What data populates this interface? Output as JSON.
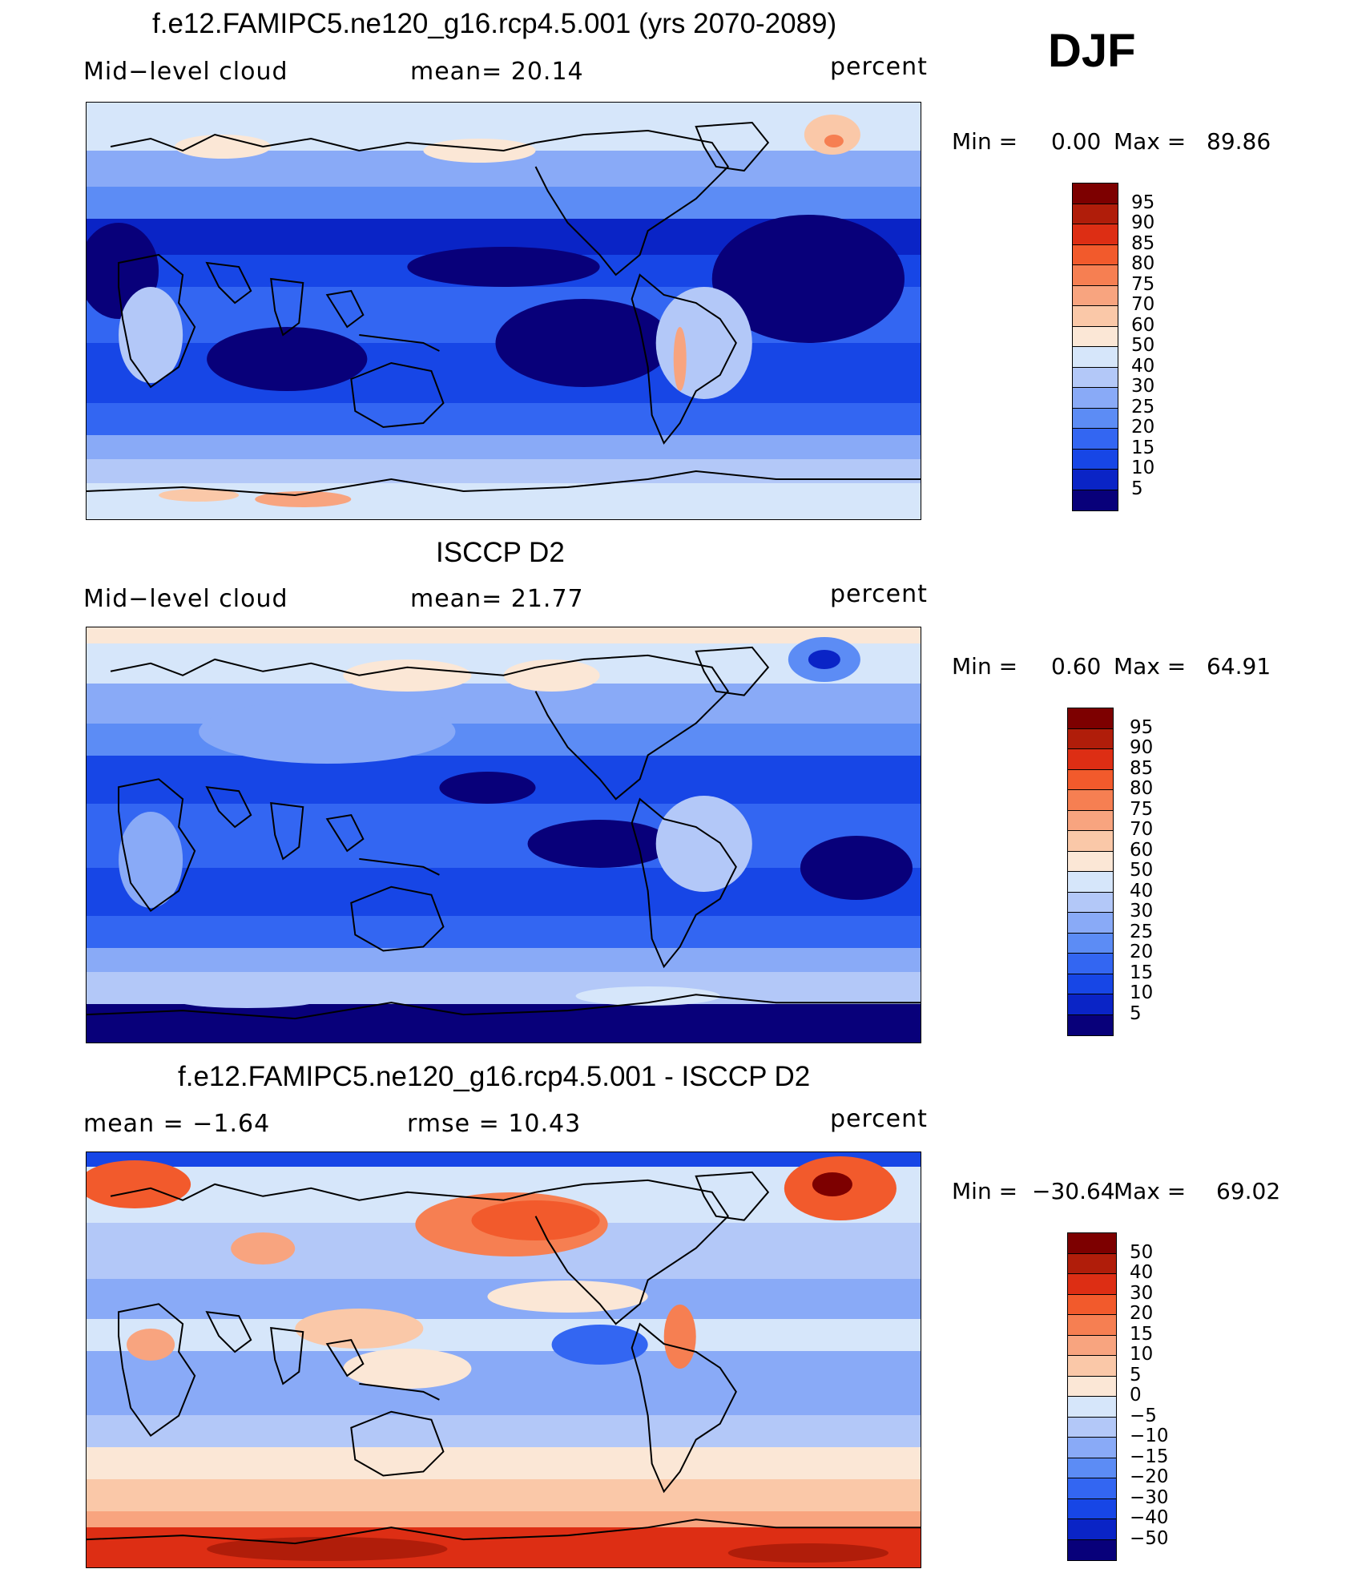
{
  "season": "DJF",
  "colors": {
    "levels": [
      "#08007a",
      "#0a24c6",
      "#1746e6",
      "#3366f2",
      "#5c8cf5",
      "#89aaf7",
      "#b3c8f8",
      "#d6e6fa",
      "#fbe7d6",
      "#fac8a8",
      "#f8a47f",
      "#f67f52",
      "#f25a2c",
      "#dd2e14",
      "#b01d0a",
      "#7d0000"
    ],
    "diff": [
      "#08007a",
      "#0a24c6",
      "#1746e6",
      "#3366f2",
      "#5c8cf5",
      "#89aaf7",
      "#b3c8f8",
      "#d6e6fa",
      "#fbe7d6",
      "#fac8a8",
      "#f8a47f",
      "#f67f52",
      "#f25a2c",
      "#dd2e14",
      "#b01d0a",
      "#7d0000"
    ],
    "land": "#000000"
  },
  "chart_data": [
    {
      "type": "heatmap",
      "panel": "model",
      "title": "f.e12.FAMIPC5.ne120_g16.rcp4.5.001 (yrs 2070-2089)",
      "variable": "Mid−level cloud",
      "stat_text": "mean=  20.14",
      "mean": 20.14,
      "units": "percent",
      "min_label": "Min  =",
      "min_value": "0.00",
      "max_label": "Max  =",
      "max_value": "89.86",
      "min": 0.0,
      "max": 89.86,
      "colorbar_labels": [
        "95",
        "90",
        "85",
        "80",
        "75",
        "70",
        "60",
        "50",
        "40",
        "30",
        "25",
        "20",
        "15",
        "10",
        "5"
      ]
    },
    {
      "type": "heatmap",
      "panel": "observations",
      "title": "ISCCP D2",
      "variable": "Mid−level cloud",
      "stat_text": "mean=  21.77",
      "mean": 21.77,
      "units": "percent",
      "min_label": "Min  =",
      "min_value": "0.60",
      "max_label": "Max  =",
      "max_value": "64.91",
      "min": 0.6,
      "max": 64.91,
      "colorbar_labels": [
        "95",
        "90",
        "85",
        "80",
        "75",
        "70",
        "60",
        "50",
        "40",
        "30",
        "25",
        "20",
        "15",
        "10",
        "5"
      ]
    },
    {
      "type": "heatmap",
      "panel": "difference",
      "title": "f.e12.FAMIPC5.ne120_g16.rcp4.5.001 - ISCCP D2",
      "variable": "mean =   −1.64",
      "stat_text": "rmse =   10.43",
      "mean": -1.64,
      "rmse": 10.43,
      "units": "percent",
      "min_label": "Min  =",
      "min_value": "−30.64",
      "max_label": "Max  =",
      "max_value": "69.02",
      "min": -30.64,
      "max": 69.02,
      "colorbar_labels": [
        "50",
        "40",
        "30",
        "20",
        "15",
        "10",
        "5",
        "0",
        "−5",
        "−10",
        "−15",
        "−20",
        "−30",
        "−40",
        "−50"
      ]
    }
  ]
}
